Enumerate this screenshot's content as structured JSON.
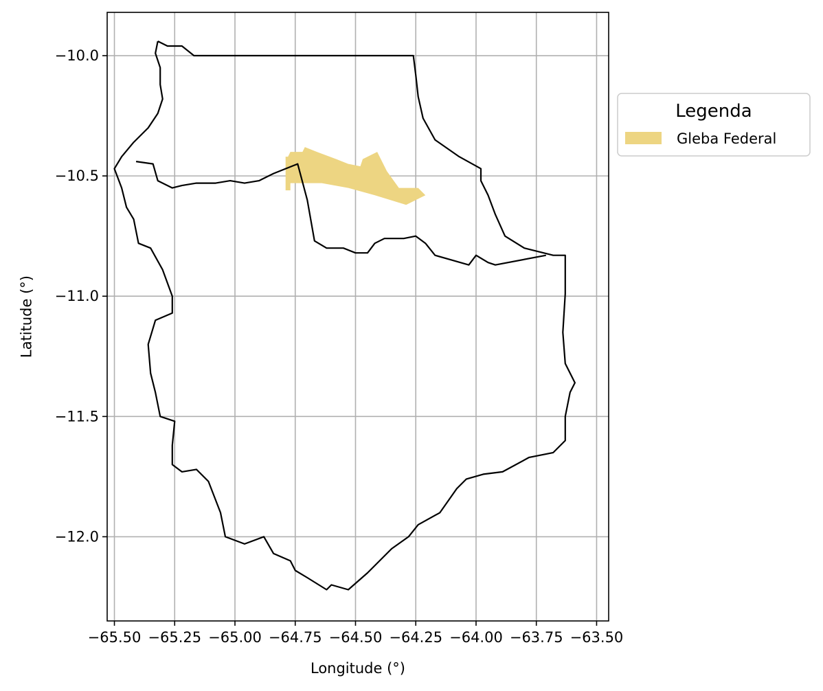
{
  "chart_data": {
    "type": "map",
    "xlabel": "Longitude (°)",
    "ylabel": "Latitude (°)",
    "xlim": [
      -65.53,
      -63.45
    ],
    "ylim": [
      -12.35,
      -9.82
    ],
    "xticks": [
      -65.5,
      -65.25,
      -65.0,
      -64.75,
      -64.5,
      -64.25,
      -64.0,
      -63.75,
      -63.5
    ],
    "xtick_labels": [
      "−65.50",
      "−65.25",
      "−65.00",
      "−64.75",
      "−64.50",
      "−64.25",
      "−64.00",
      "−63.75",
      "−63.50"
    ],
    "yticks": [
      -10.0,
      -10.5,
      -11.0,
      -11.5,
      -12.0
    ],
    "ytick_labels": [
      "−10.0",
      "−10.5",
      "−11.0",
      "−11.5",
      "−12.0"
    ],
    "grid": true,
    "legend": {
      "title": "Legenda",
      "placement": "outside-right-top",
      "entries": [
        {
          "label": "Gleba Federal",
          "color": "#EDD582"
        }
      ]
    },
    "colors": {
      "gleba": "#EDD582",
      "boundary": "#000000",
      "grid": "#b0b0b0"
    },
    "gleba_federal": [
      [
        -64.78,
        -10.42
      ],
      [
        -64.77,
        -10.4
      ],
      [
        -64.72,
        -10.4
      ],
      [
        -64.71,
        -10.38
      ],
      [
        -64.66,
        -10.4
      ],
      [
        -64.58,
        -10.43
      ],
      [
        -64.53,
        -10.45
      ],
      [
        -64.48,
        -10.46
      ],
      [
        -64.47,
        -10.43
      ],
      [
        -64.41,
        -10.4
      ],
      [
        -64.37,
        -10.48
      ],
      [
        -64.32,
        -10.55
      ],
      [
        -64.24,
        -10.55
      ],
      [
        -64.21,
        -10.58
      ],
      [
        -64.23,
        -10.59
      ],
      [
        -64.29,
        -10.62
      ],
      [
        -64.42,
        -10.58
      ],
      [
        -64.53,
        -10.55
      ],
      [
        -64.64,
        -10.53
      ],
      [
        -64.77,
        -10.53
      ],
      [
        -64.77,
        -10.56
      ],
      [
        -64.79,
        -10.56
      ],
      [
        -64.79,
        -10.42
      ]
    ],
    "outer_boundary": [
      [
        -65.32,
        -9.94
      ],
      [
        -65.28,
        -9.96
      ],
      [
        -65.22,
        -9.96
      ],
      [
        -65.17,
        -10.0
      ],
      [
        -64.26,
        -10.0
      ],
      [
        -64.25,
        -10.08
      ],
      [
        -64.24,
        -10.17
      ],
      [
        -64.22,
        -10.26
      ],
      [
        -64.17,
        -10.35
      ],
      [
        -64.07,
        -10.42
      ],
      [
        -63.98,
        -10.47
      ],
      [
        -63.98,
        -10.52
      ],
      [
        -63.95,
        -10.58
      ],
      [
        -63.92,
        -10.66
      ],
      [
        -63.88,
        -10.75
      ],
      [
        -63.8,
        -10.8
      ],
      [
        -63.68,
        -10.83
      ],
      [
        -63.63,
        -10.83
      ],
      [
        -63.63,
        -10.87
      ],
      [
        -63.63,
        -10.99
      ],
      [
        -63.64,
        -11.15
      ],
      [
        -63.63,
        -11.28
      ],
      [
        -63.59,
        -11.36
      ],
      [
        -63.61,
        -11.4
      ],
      [
        -63.63,
        -11.5
      ],
      [
        -63.63,
        -11.6
      ],
      [
        -63.68,
        -11.65
      ],
      [
        -63.78,
        -11.67
      ],
      [
        -63.89,
        -11.73
      ],
      [
        -63.97,
        -11.74
      ],
      [
        -64.04,
        -11.76
      ],
      [
        -64.08,
        -11.8
      ],
      [
        -64.15,
        -11.9
      ],
      [
        -64.24,
        -11.95
      ],
      [
        -64.28,
        -12.0
      ],
      [
        -64.35,
        -12.05
      ],
      [
        -64.45,
        -12.15
      ],
      [
        -64.53,
        -12.22
      ],
      [
        -64.6,
        -12.2
      ],
      [
        -64.62,
        -12.22
      ],
      [
        -64.7,
        -12.17
      ],
      [
        -64.75,
        -12.14
      ],
      [
        -64.77,
        -12.1
      ],
      [
        -64.84,
        -12.07
      ],
      [
        -64.88,
        -12.0
      ],
      [
        -64.96,
        -12.03
      ],
      [
        -65.04,
        -12.0
      ],
      [
        -65.06,
        -11.9
      ],
      [
        -65.11,
        -11.77
      ],
      [
        -65.16,
        -11.72
      ],
      [
        -65.22,
        -11.73
      ],
      [
        -65.26,
        -11.7
      ],
      [
        -65.26,
        -11.62
      ],
      [
        -65.25,
        -11.52
      ],
      [
        -65.31,
        -11.5
      ],
      [
        -65.33,
        -11.4
      ],
      [
        -65.35,
        -11.32
      ],
      [
        -65.36,
        -11.2
      ],
      [
        -65.33,
        -11.1
      ],
      [
        -65.26,
        -11.07
      ],
      [
        -65.26,
        -11.0
      ],
      [
        -65.3,
        -10.89
      ],
      [
        -65.35,
        -10.8
      ],
      [
        -65.4,
        -10.78
      ],
      [
        -65.42,
        -10.68
      ],
      [
        -65.45,
        -10.63
      ],
      [
        -65.47,
        -10.55
      ],
      [
        -65.5,
        -10.47
      ],
      [
        -65.47,
        -10.42
      ],
      [
        -65.42,
        -10.36
      ],
      [
        -65.36,
        -10.3
      ],
      [
        -65.32,
        -10.24
      ],
      [
        -65.3,
        -10.18
      ],
      [
        -65.31,
        -10.12
      ],
      [
        -65.31,
        -10.05
      ],
      [
        -65.33,
        -9.99
      ],
      [
        -65.32,
        -9.94
      ]
    ],
    "inner_division_1": [
      [
        -65.41,
        -10.44
      ],
      [
        -65.34,
        -10.45
      ],
      [
        -65.32,
        -10.52
      ],
      [
        -65.26,
        -10.55
      ],
      [
        -65.22,
        -10.54
      ],
      [
        -65.16,
        -10.53
      ],
      [
        -65.08,
        -10.53
      ],
      [
        -65.02,
        -10.52
      ],
      [
        -64.96,
        -10.53
      ],
      [
        -64.9,
        -10.52
      ],
      [
        -64.84,
        -10.49
      ],
      [
        -64.74,
        -10.45
      ],
      [
        -64.7,
        -10.6
      ],
      [
        -64.67,
        -10.77
      ],
      [
        -64.62,
        -10.8
      ],
      [
        -64.55,
        -10.8
      ],
      [
        -64.5,
        -10.82
      ],
      [
        -64.45,
        -10.82
      ],
      [
        -64.42,
        -10.78
      ],
      [
        -64.38,
        -10.76
      ],
      [
        -64.3,
        -10.76
      ],
      [
        -64.25,
        -10.75
      ],
      [
        -64.21,
        -10.78
      ],
      [
        -64.17,
        -10.83
      ],
      [
        -64.1,
        -10.85
      ],
      [
        -64.03,
        -10.87
      ],
      [
        -64.0,
        -10.83
      ],
      [
        -63.95,
        -10.86
      ],
      [
        -63.92,
        -10.87
      ],
      [
        -63.71,
        -10.83
      ]
    ]
  }
}
